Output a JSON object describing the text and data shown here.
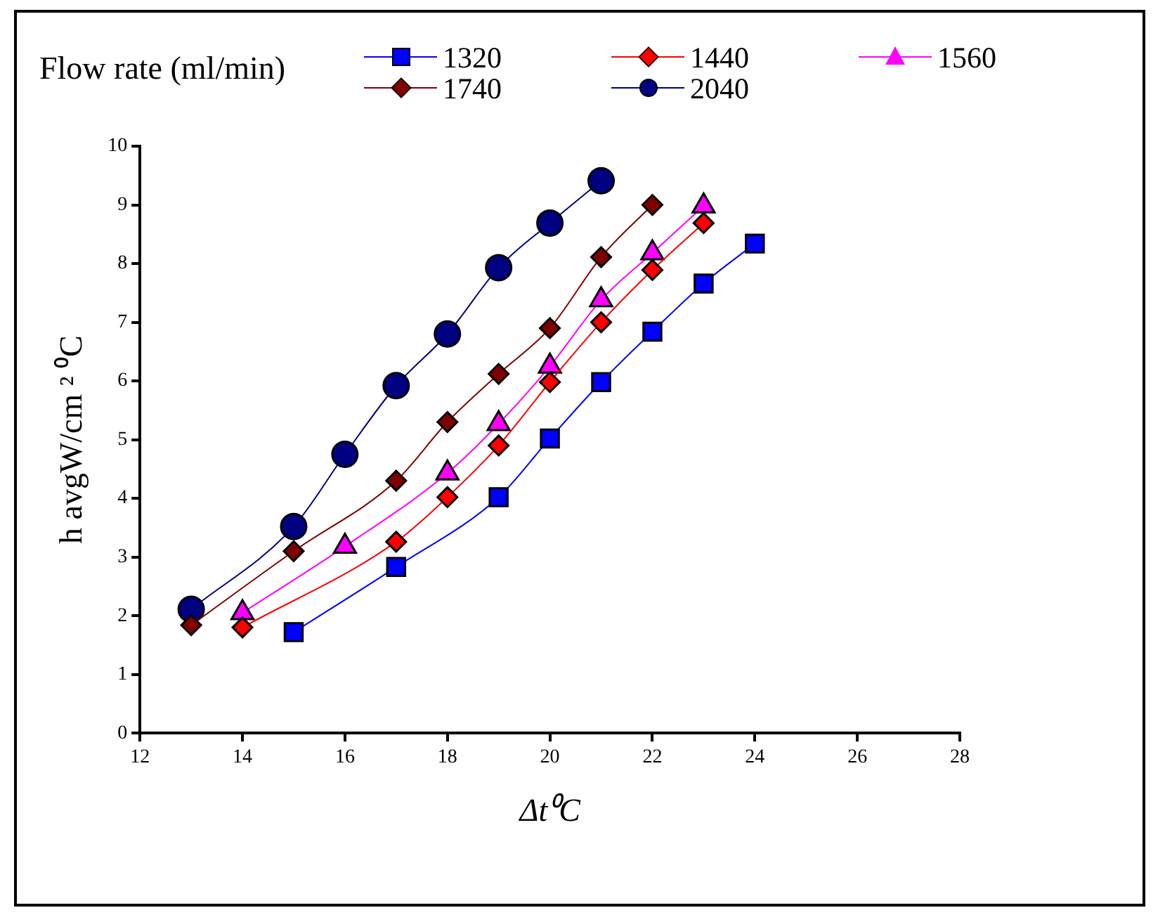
{
  "chart_data": {
    "type": "line",
    "xlabel": "Δt⁰C",
    "ylabel": "h avgW/cm ² ⁰C",
    "legend_title": "Flow rate (ml/min)",
    "legend": "top",
    "grid": false,
    "line_style": "solid",
    "xlim": [
      12,
      28
    ],
    "xticks": [
      12,
      14,
      16,
      18,
      20,
      22,
      24,
      26,
      28
    ],
    "ylim": [
      0,
      10
    ],
    "yticks": [
      0,
      1,
      2,
      3,
      4,
      5,
      6,
      7,
      8,
      9,
      10
    ],
    "series": [
      {
        "name": "1320",
        "color": "#0000ff",
        "marker": "square",
        "x": [
          15,
          17,
          19,
          20,
          21,
          22,
          23,
          24
        ],
        "values": [
          1.72,
          2.83,
          4.02,
          5.02,
          5.98,
          6.84,
          7.66,
          8.34
        ]
      },
      {
        "name": "1440",
        "color": "#ff0000",
        "marker": "diamond",
        "x": [
          14,
          17,
          18,
          19,
          20,
          21,
          22,
          23
        ],
        "values": [
          1.8,
          3.26,
          4.02,
          4.9,
          5.98,
          7.0,
          7.89,
          8.69
        ]
      },
      {
        "name": "1560",
        "color": "#ff00ff",
        "marker": "triangle",
        "x": [
          14,
          16,
          18,
          19,
          20,
          21,
          22,
          23
        ],
        "values": [
          2.05,
          3.18,
          4.43,
          5.27,
          6.25,
          7.38,
          8.18,
          8.98
        ]
      },
      {
        "name": "1740",
        "color": "#800000",
        "marker": "diamond",
        "x": [
          13,
          15,
          17,
          18,
          19,
          20,
          21,
          22
        ],
        "values": [
          1.84,
          3.1,
          4.3,
          5.3,
          6.12,
          6.9,
          8.11,
          9.0
        ]
      },
      {
        "name": "2040",
        "color": "#000080",
        "marker": "circle",
        "x": [
          13,
          15,
          16,
          17,
          18,
          19,
          20,
          21
        ],
        "values": [
          2.11,
          3.52,
          4.75,
          5.92,
          6.8,
          7.93,
          8.69,
          9.41
        ]
      }
    ]
  }
}
